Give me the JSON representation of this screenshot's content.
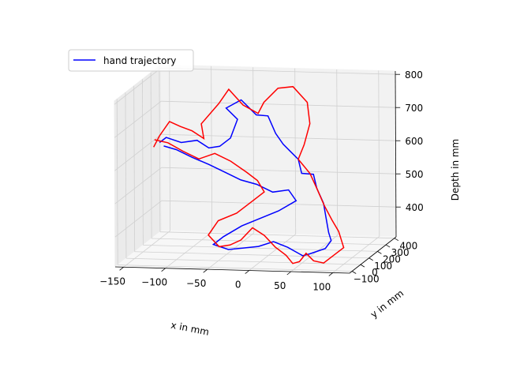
{
  "chart_data": {
    "type": "line",
    "projection": "3d",
    "title": "",
    "xlabel": "x in mm",
    "ylabel": "y in mm",
    "zlabel": "Depth in mm",
    "xlim": [
      -160,
      120
    ],
    "ylim": [
      -130,
      420
    ],
    "zlim": [
      310,
      810
    ],
    "xticks": [
      -150,
      -100,
      -50,
      0,
      50,
      100
    ],
    "xtick_labels": [
      "−150",
      "−100",
      "−50",
      "0",
      "50",
      "100"
    ],
    "yticks": [
      -100,
      0,
      100,
      200,
      300,
      400
    ],
    "ytick_labels": [
      "−100",
      "0",
      "100",
      "200",
      "300",
      "400"
    ],
    "zticks": [
      400,
      500,
      600,
      700,
      800
    ],
    "ztick_labels": [
      "400",
      "500",
      "600",
      "700",
      "800"
    ],
    "grid": true,
    "legend_position": "top-left",
    "series": [
      {
        "name": "hand trajectory",
        "color": "#0000ff",
        "points": [
          [
            -150,
            300,
            600
          ],
          [
            -140,
            280,
            620
          ],
          [
            -120,
            260,
            610
          ],
          [
            -100,
            250,
            620
          ],
          [
            -85,
            240,
            600
          ],
          [
            -70,
            220,
            610
          ],
          [
            -55,
            200,
            640
          ],
          [
            -45,
            185,
            700
          ],
          [
            -60,
            200,
            730
          ],
          [
            -40,
            180,
            760
          ],
          [
            -20,
            160,
            720
          ],
          [
            -5,
            150,
            720
          ],
          [
            5,
            140,
            670
          ],
          [
            15,
            130,
            640
          ],
          [
            25,
            120,
            620
          ],
          [
            35,
            110,
            600
          ],
          [
            40,
            100,
            560
          ],
          [
            55,
            90,
            560
          ],
          [
            60,
            80,
            520
          ],
          [
            70,
            60,
            480
          ],
          [
            75,
            40,
            440
          ],
          [
            80,
            20,
            400
          ],
          [
            85,
            0,
            380
          ],
          [
            80,
            -20,
            360
          ],
          [
            60,
            -10,
            340
          ],
          [
            50,
            10,
            330
          ],
          [
            30,
            30,
            350
          ],
          [
            10,
            60,
            360
          ],
          [
            -10,
            80,
            340
          ],
          [
            -30,
            100,
            330
          ],
          [
            -50,
            120,
            320
          ],
          [
            -70,
            140,
            330
          ],
          [
            -60,
            160,
            350
          ],
          [
            -40,
            180,
            380
          ],
          [
            -20,
            200,
            400
          ],
          [
            0,
            220,
            420
          ],
          [
            20,
            230,
            450
          ],
          [
            10,
            240,
            480
          ],
          [
            -10,
            250,
            470
          ],
          [
            -30,
            260,
            490
          ],
          [
            -50,
            270,
            500
          ],
          [
            -70,
            280,
            520
          ],
          [
            -90,
            290,
            540
          ],
          [
            -110,
            290,
            560
          ],
          [
            -130,
            300,
            580
          ],
          [
            -145,
            300,
            590
          ]
        ]
      },
      {
        "color": "#ff0000",
        "points": [
          [
            -155,
            280,
            590
          ],
          [
            -150,
            300,
            620
          ],
          [
            -140,
            320,
            660
          ],
          [
            -125,
            300,
            650
          ],
          [
            -110,
            290,
            640
          ],
          [
            -95,
            280,
            620
          ],
          [
            -100,
            300,
            660
          ],
          [
            -80,
            310,
            720
          ],
          [
            -70,
            330,
            760
          ],
          [
            -50,
            300,
            720
          ],
          [
            -30,
            280,
            700
          ],
          [
            -20,
            250,
            740
          ],
          [
            0,
            220,
            790
          ],
          [
            20,
            200,
            800
          ],
          [
            40,
            170,
            760
          ],
          [
            45,
            150,
            700
          ],
          [
            40,
            130,
            640
          ],
          [
            35,
            110,
            600
          ],
          [
            50,
            100,
            560
          ],
          [
            60,
            80,
            520
          ],
          [
            70,
            70,
            470
          ],
          [
            80,
            60,
            430
          ],
          [
            90,
            40,
            400
          ],
          [
            95,
            20,
            380
          ],
          [
            100,
            0,
            360
          ],
          [
            90,
            -20,
            340
          ],
          [
            80,
            -40,
            320
          ],
          [
            70,
            -60,
            330
          ],
          [
            60,
            -50,
            350
          ],
          [
            50,
            -30,
            320
          ],
          [
            40,
            -10,
            310
          ],
          [
            30,
            10,
            330
          ],
          [
            15,
            30,
            350
          ],
          [
            0,
            50,
            380
          ],
          [
            -15,
            60,
            400
          ],
          [
            -30,
            70,
            360
          ],
          [
            -45,
            90,
            340
          ],
          [
            -60,
            110,
            330
          ],
          [
            -75,
            130,
            360
          ],
          [
            -65,
            150,
            400
          ],
          [
            -45,
            170,
            420
          ],
          [
            -30,
            190,
            450
          ],
          [
            -15,
            200,
            480
          ],
          [
            -25,
            220,
            510
          ],
          [
            -40,
            240,
            530
          ],
          [
            -60,
            250,
            560
          ],
          [
            -80,
            260,
            580
          ],
          [
            -100,
            270,
            560
          ],
          [
            -120,
            280,
            580
          ],
          [
            -140,
            300,
            600
          ],
          [
            -155,
            290,
            610
          ]
        ]
      }
    ]
  }
}
